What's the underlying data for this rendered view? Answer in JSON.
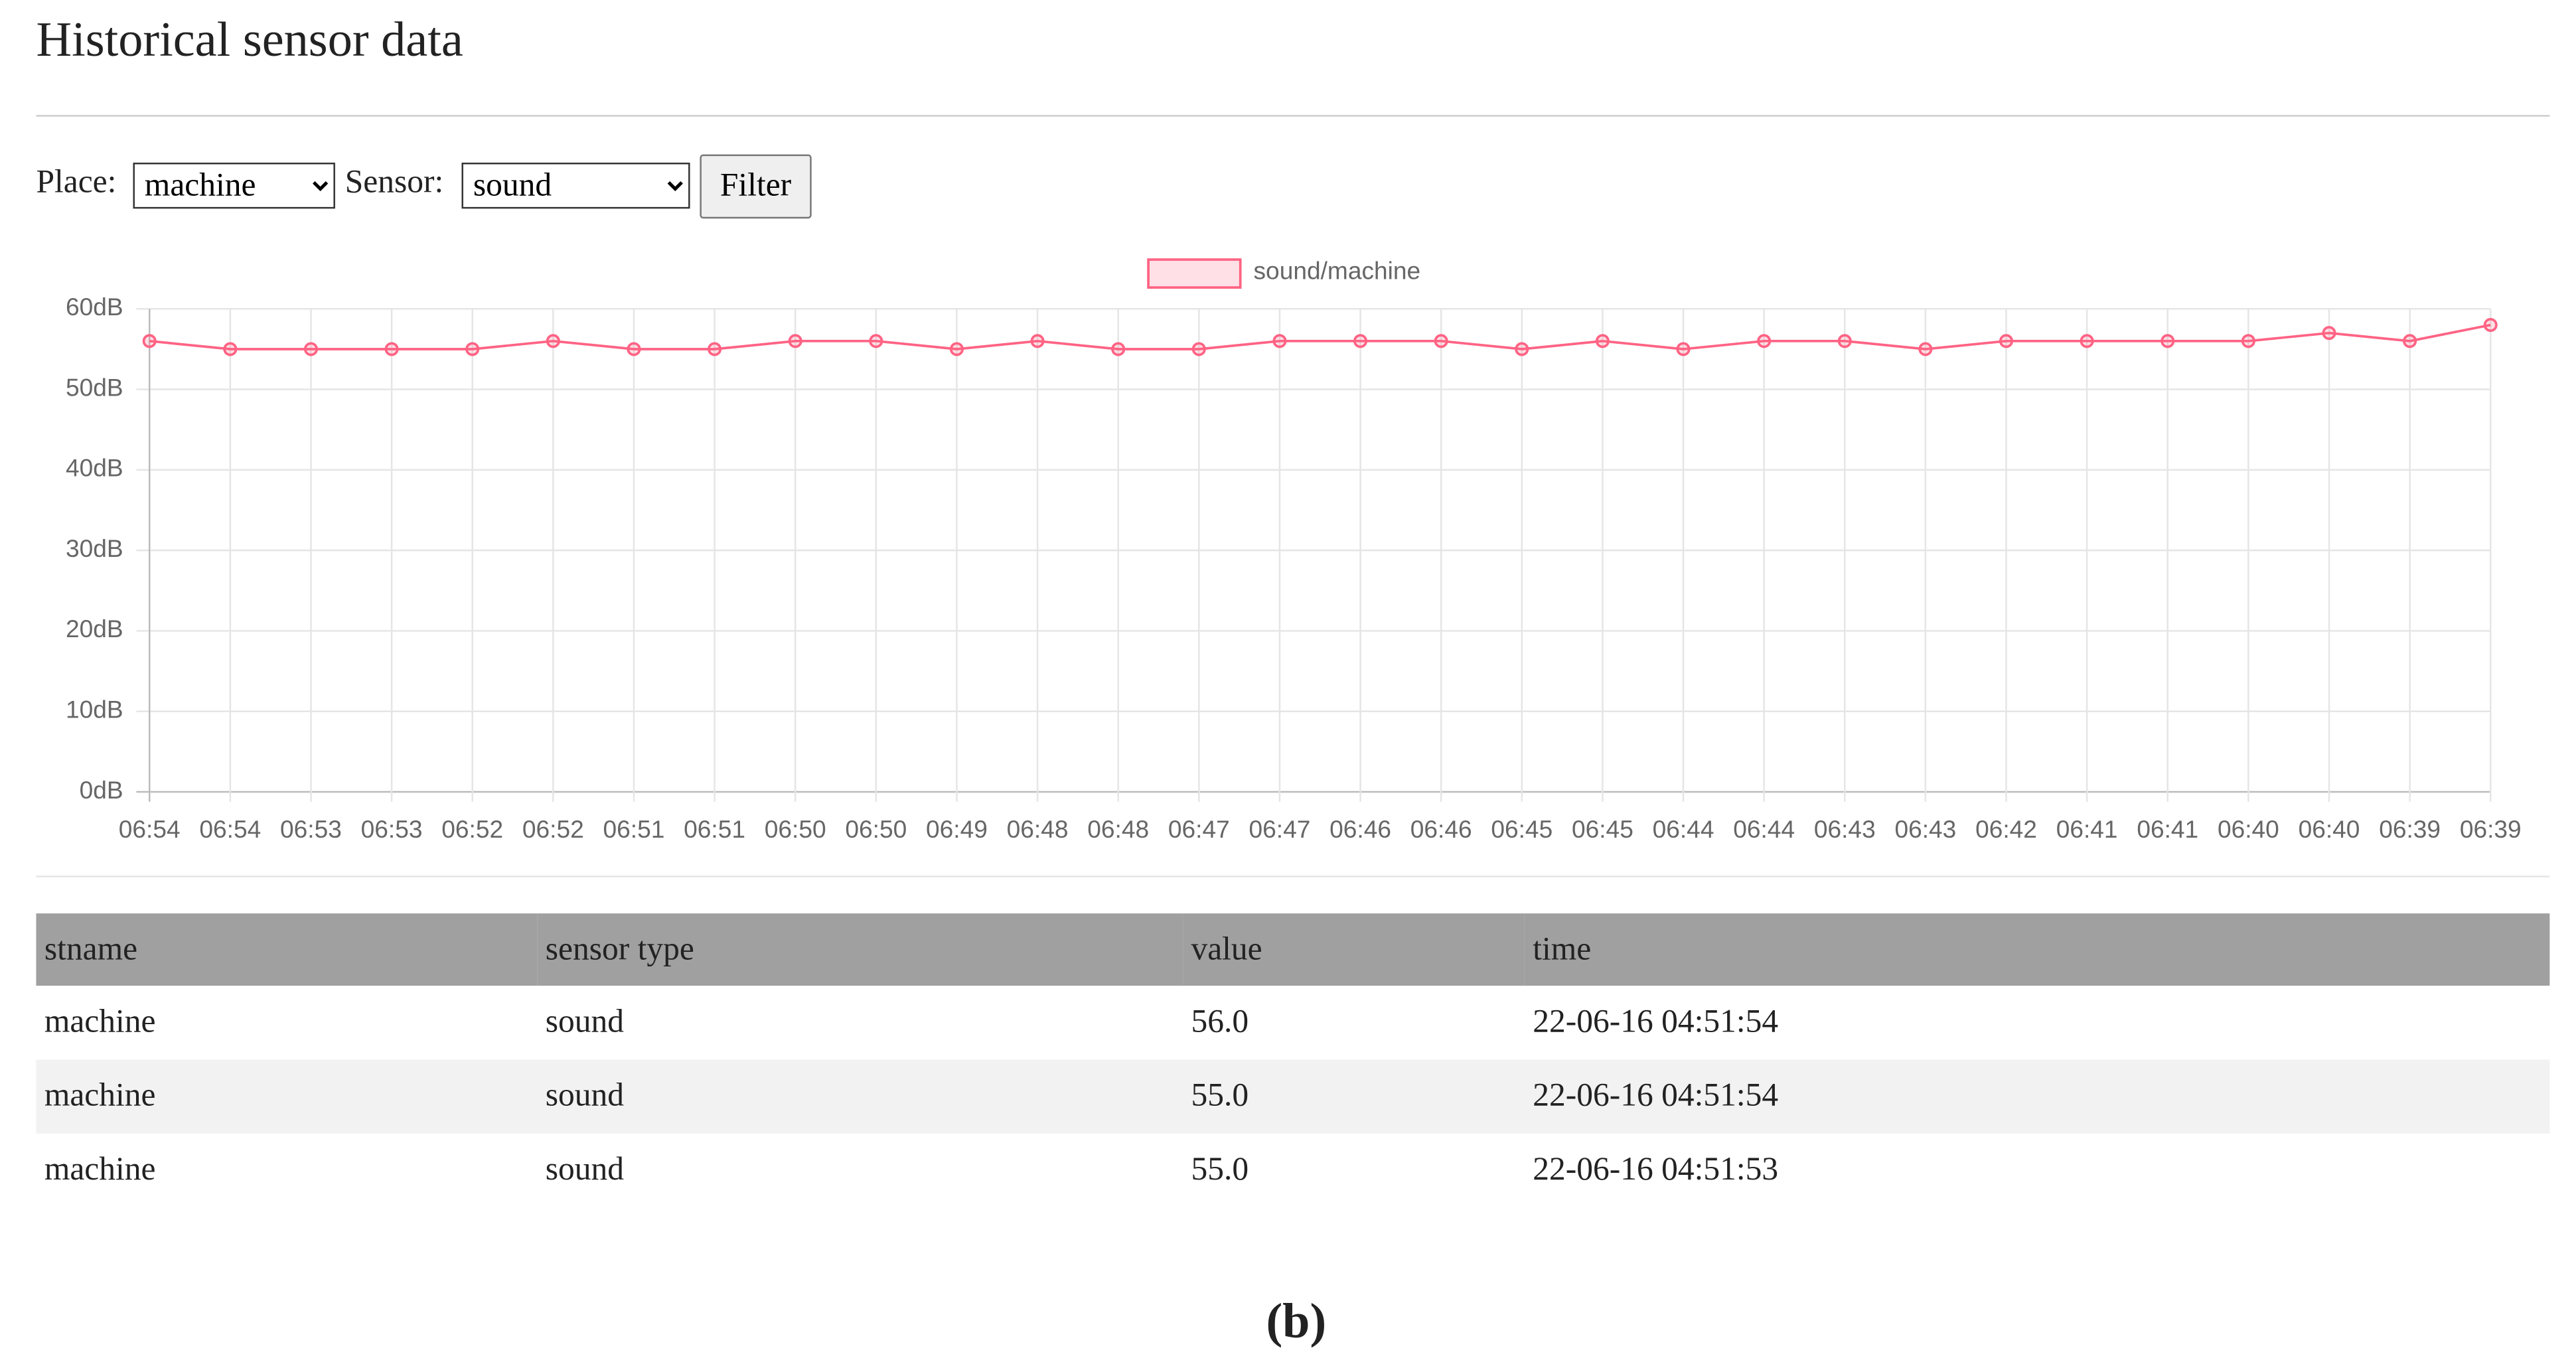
{
  "header": {
    "title": "Historical sensor data"
  },
  "filter": {
    "place_label": "Place:",
    "place_value": "machine",
    "sensor_label": "Sensor:",
    "sensor_value": "sound",
    "button": "Filter"
  },
  "chart_data": {
    "type": "line",
    "categories": [
      "06:54",
      "06:54",
      "06:53",
      "06:53",
      "06:52",
      "06:52",
      "06:51",
      "06:51",
      "06:50",
      "06:50",
      "06:49",
      "06:48",
      "06:48",
      "06:47",
      "06:47",
      "06:46",
      "06:46",
      "06:45",
      "06:45",
      "06:44",
      "06:44",
      "06:43",
      "06:43",
      "06:42",
      "06:41",
      "06:41",
      "06:40",
      "06:40",
      "06:39",
      "06:39"
    ],
    "series": [
      {
        "name": "sound/machine",
        "color": "#ff6384",
        "values": [
          56,
          55,
          55,
          55,
          55,
          56,
          55,
          55,
          56,
          56,
          55,
          56,
          55,
          55,
          56,
          56,
          56,
          55,
          56,
          55,
          56,
          56,
          55,
          56,
          56,
          56,
          56,
          57,
          56,
          58
        ]
      }
    ],
    "ylim": [
      0,
      60
    ],
    "yticks": [
      {
        "value": 0,
        "label": "0dB"
      },
      {
        "value": 10,
        "label": "10dB"
      },
      {
        "value": 20,
        "label": "20dB"
      },
      {
        "value": 30,
        "label": "30dB"
      },
      {
        "value": 40,
        "label": "40dB"
      },
      {
        "value": 50,
        "label": "50dB"
      },
      {
        "value": 60,
        "label": "60dB"
      }
    ],
    "grid": true,
    "legend": "top"
  },
  "table": {
    "columns": [
      "stname",
      "sensor type",
      "value",
      "time"
    ],
    "rows": [
      [
        "machine",
        "sound",
        "56.0",
        "22-06-16 04:51:54"
      ],
      [
        "machine",
        "sound",
        "55.0",
        "22-06-16 04:51:54"
      ],
      [
        "machine",
        "sound",
        "55.0",
        "22-06-16 04:51:53"
      ]
    ]
  },
  "caption": "(b)"
}
